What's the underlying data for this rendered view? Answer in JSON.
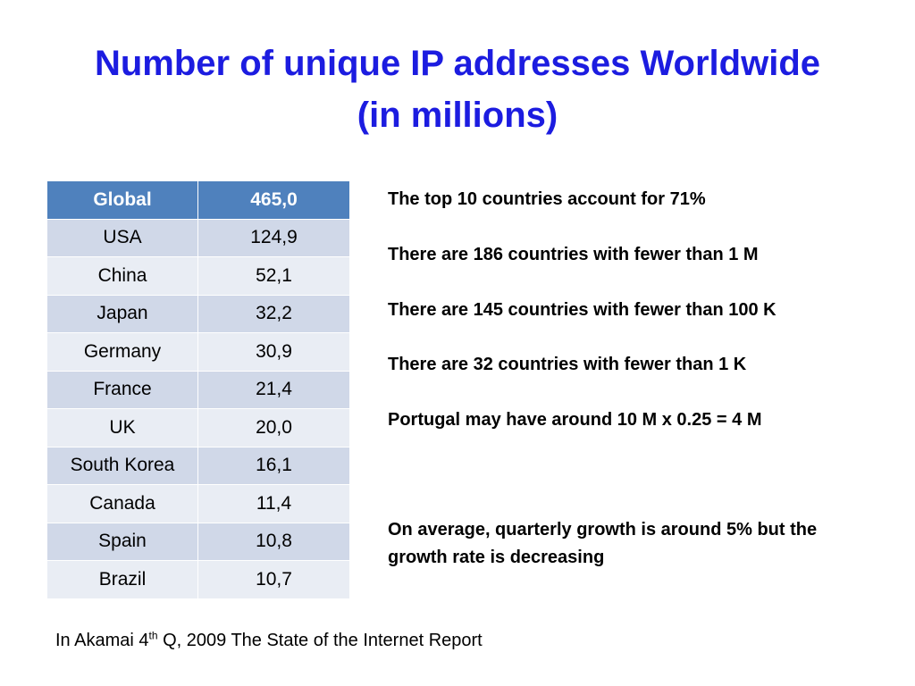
{
  "title": {
    "line1": "Number of unique IP addresses Worldwide",
    "line2": "(in millions)"
  },
  "table": {
    "header": [
      "Global",
      "465,0"
    ],
    "rows": [
      [
        "USA",
        "124,9"
      ],
      [
        "China",
        "52,1"
      ],
      [
        "Japan",
        "32,2"
      ],
      [
        "Germany",
        "30,9"
      ],
      [
        "France",
        "21,4"
      ],
      [
        "UK",
        "20,0"
      ],
      [
        "South Korea",
        "16,1"
      ],
      [
        "Canada",
        "11,4"
      ],
      [
        "Spain",
        "10,8"
      ],
      [
        "Brazil",
        "10,7"
      ]
    ]
  },
  "notes": [
    "The top 10 countries account for 71%",
    "There are 186 countries with fewer than 1 M",
    "There are 145 countries with fewer than 100 K",
    "There are 32 countries with fewer than 1 K",
    "Portugal may have around 10 M x 0.25 = 4 M",
    "On average, quarterly growth is around 5% but the growth rate is decreasing"
  ],
  "source": {
    "prefix": "In Akamai 4",
    "superscript": "th",
    "suffix": " Q, 2009 The State of the Internet Report"
  },
  "colors": {
    "title": "#1c1ce0",
    "header_bg": "#4f81bd",
    "row_odd_bg": "#d0d8e8",
    "row_even_bg": "#e9edf4"
  }
}
